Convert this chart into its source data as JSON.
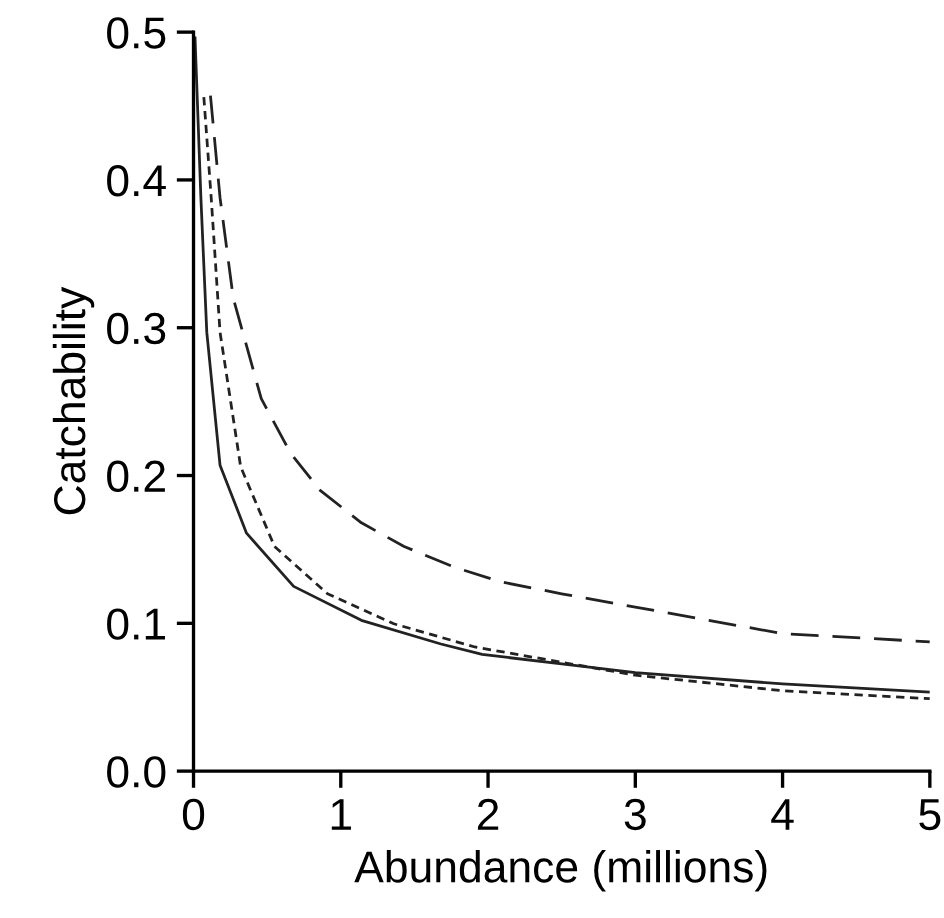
{
  "chart_data": {
    "type": "line",
    "xlabel": "Abundance (millions)",
    "ylabel": "Catchability",
    "xlim": [
      0,
      5
    ],
    "ylim": [
      0,
      0.5
    ],
    "xticks": [
      0,
      1,
      2,
      3,
      4,
      5
    ],
    "yticks": [
      {
        "value": 0,
        "label": "0.0"
      },
      0.1,
      0.2,
      0.3,
      0.4,
      0.5
    ],
    "grid": false,
    "legend": false,
    "marker": "none",
    "series": [
      {
        "color": "#222222",
        "line_style": "solid",
        "x": [
          0.01,
          0.05,
          0.09,
          0.18,
          0.36,
          0.68,
          1.14,
          1.68,
          1.96,
          2.5,
          3,
          4,
          5
        ],
        "values": [
          0.497,
          0.388,
          0.297,
          0.207,
          0.161,
          0.125,
          0.102,
          0.086,
          0.079,
          0.0725,
          0.0667,
          0.059,
          0.0535
        ]
      },
      {
        "color": "#222222",
        "line_style": "dotted",
        "x": [
          0.07,
          0.12,
          0.18,
          0.32,
          0.55,
          0.91,
          1.36,
          1.91,
          3,
          4,
          5
        ],
        "values": [
          0.456,
          0.388,
          0.297,
          0.206,
          0.152,
          0.12,
          0.0997,
          0.084,
          0.0649,
          0.0544,
          0.049
        ]
      },
      {
        "color": "#222222",
        "line_style": "dashed",
        "x": [
          0.115,
          0.18,
          0.27,
          0.46,
          0.66,
          0.86,
          1.14,
          1.43,
          1.77,
          2.09,
          2.5,
          3,
          4,
          5
        ],
        "values": [
          0.457,
          0.388,
          0.32,
          0.252,
          0.215,
          0.19,
          0.168,
          0.152,
          0.138,
          0.128,
          0.12,
          0.111,
          0.093,
          0.0875
        ]
      }
    ]
  }
}
